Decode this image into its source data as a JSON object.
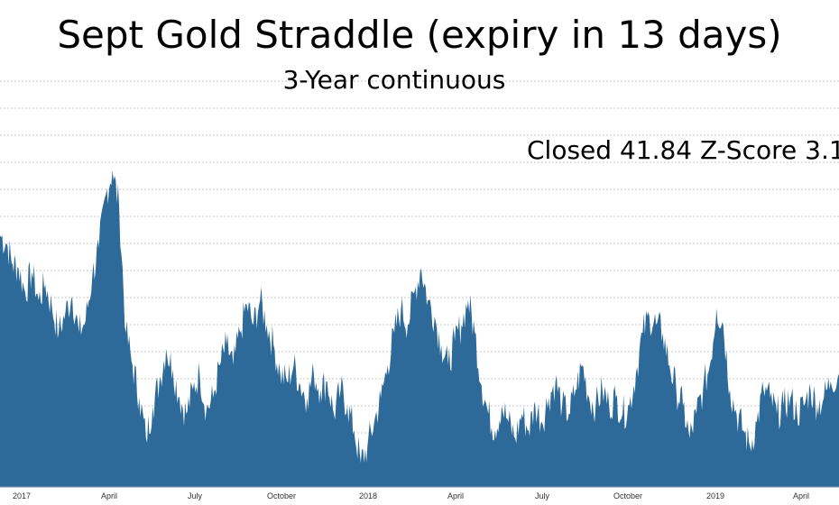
{
  "chart_data": {
    "type": "area",
    "title": "Sept Gold Straddle (expiry in 13 days)",
    "subtitle": "3-Year continuous",
    "annotation": "Closed 41.84 Z-Score 3.1",
    "xlabel": "",
    "ylabel": "",
    "grid": true,
    "legend": "none",
    "color": "#2e6a99",
    "x_ticks": [
      "2017",
      "April",
      "July",
      "October",
      "2018",
      "April",
      "July",
      "October",
      "2019",
      "April"
    ],
    "points": [
      [
        0.0,
        62
      ],
      [
        0.008,
        60
      ],
      [
        0.015,
        55
      ],
      [
        0.022,
        54
      ],
      [
        0.03,
        48
      ],
      [
        0.038,
        53
      ],
      [
        0.046,
        46
      ],
      [
        0.054,
        50
      ],
      [
        0.062,
        44
      ],
      [
        0.07,
        38
      ],
      [
        0.078,
        43
      ],
      [
        0.086,
        47
      ],
      [
        0.094,
        38
      ],
      [
        0.102,
        41
      ],
      [
        0.11,
        52
      ],
      [
        0.118,
        59
      ],
      [
        0.126,
        72
      ],
      [
        0.134,
        78
      ],
      [
        0.142,
        69
      ],
      [
        0.15,
        38
      ],
      [
        0.158,
        30
      ],
      [
        0.166,
        22
      ],
      [
        0.174,
        12
      ],
      [
        0.182,
        20
      ],
      [
        0.19,
        26
      ],
      [
        0.198,
        34
      ],
      [
        0.206,
        29
      ],
      [
        0.214,
        22
      ],
      [
        0.222,
        18
      ],
      [
        0.23,
        24
      ],
      [
        0.238,
        28
      ],
      [
        0.246,
        19
      ],
      [
        0.254,
        22
      ],
      [
        0.262,
        30
      ],
      [
        0.27,
        35
      ],
      [
        0.278,
        30
      ],
      [
        0.286,
        38
      ],
      [
        0.294,
        45
      ],
      [
        0.302,
        40
      ],
      [
        0.31,
        46
      ],
      [
        0.318,
        40
      ],
      [
        0.326,
        35
      ],
      [
        0.334,
        28
      ],
      [
        0.342,
        26
      ],
      [
        0.35,
        30
      ],
      [
        0.358,
        25
      ],
      [
        0.366,
        22
      ],
      [
        0.374,
        28
      ],
      [
        0.382,
        24
      ],
      [
        0.39,
        26
      ],
      [
        0.398,
        18
      ],
      [
        0.406,
        24
      ],
      [
        0.414,
        20
      ],
      [
        0.422,
        14
      ],
      [
        0.43,
        6
      ],
      [
        0.438,
        10
      ],
      [
        0.446,
        16
      ],
      [
        0.454,
        22
      ],
      [
        0.462,
        30
      ],
      [
        0.47,
        38
      ],
      [
        0.478,
        44
      ],
      [
        0.486,
        40
      ],
      [
        0.494,
        48
      ],
      [
        0.502,
        54
      ],
      [
        0.51,
        46
      ],
      [
        0.518,
        42
      ],
      [
        0.526,
        35
      ],
      [
        0.534,
        30
      ],
      [
        0.542,
        36
      ],
      [
        0.55,
        40
      ],
      [
        0.558,
        46
      ],
      [
        0.566,
        38
      ],
      [
        0.574,
        25
      ],
      [
        0.582,
        18
      ],
      [
        0.59,
        14
      ],
      [
        0.598,
        20
      ],
      [
        0.606,
        16
      ],
      [
        0.614,
        12
      ],
      [
        0.622,
        18
      ],
      [
        0.63,
        14
      ],
      [
        0.638,
        20
      ],
      [
        0.646,
        16
      ],
      [
        0.654,
        22
      ],
      [
        0.662,
        26
      ],
      [
        0.67,
        20
      ],
      [
        0.678,
        18
      ],
      [
        0.686,
        24
      ],
      [
        0.694,
        30
      ],
      [
        0.702,
        22
      ],
      [
        0.71,
        20
      ],
      [
        0.718,
        24
      ],
      [
        0.726,
        20
      ],
      [
        0.734,
        22
      ],
      [
        0.742,
        18
      ],
      [
        0.75,
        20
      ],
      [
        0.758,
        28
      ],
      [
        0.766,
        38
      ],
      [
        0.774,
        42
      ],
      [
        0.782,
        40
      ],
      [
        0.79,
        38
      ],
      [
        0.798,
        30
      ],
      [
        0.806,
        24
      ],
      [
        0.814,
        20
      ],
      [
        0.822,
        12
      ],
      [
        0.83,
        18
      ],
      [
        0.838,
        24
      ],
      [
        0.846,
        30
      ],
      [
        0.854,
        44
      ],
      [
        0.862,
        40
      ],
      [
        0.87,
        24
      ],
      [
        0.878,
        18
      ],
      [
        0.886,
        14
      ],
      [
        0.894,
        10
      ],
      [
        0.902,
        16
      ],
      [
        0.91,
        24
      ],
      [
        0.918,
        22
      ],
      [
        0.926,
        18
      ],
      [
        0.934,
        20
      ],
      [
        0.942,
        22
      ],
      [
        0.95,
        18
      ],
      [
        0.958,
        20
      ],
      [
        0.966,
        24
      ],
      [
        0.974,
        20
      ],
      [
        0.982,
        22
      ],
      [
        0.99,
        26
      ],
      [
        1.0,
        28
      ]
    ],
    "ylim": [
      0,
      100
    ]
  }
}
